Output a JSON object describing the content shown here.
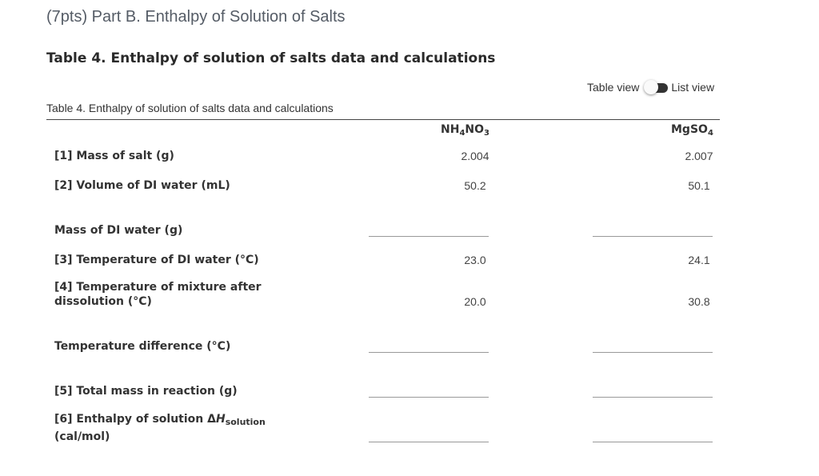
{
  "header": {
    "part_title": "(7pts) Part B. Enthalpy of Solution of Salts",
    "table_heading": "Table 4. Enthalpy of solution of salts data and calculations"
  },
  "view_toggle": {
    "left_label": "Table view",
    "right_label": "List view"
  },
  "table": {
    "caption": "Table 4. Enthalpy of solution of salts data and calculations",
    "columns": [
      {
        "formula_main": "NH",
        "sub1": "4",
        "formula_mid": "NO",
        "sub2": "3"
      },
      {
        "formula_main": "MgSO",
        "sub1": "4"
      }
    ],
    "rows": [
      {
        "label": "[1] Mass of salt (g)",
        "values": [
          "2.004",
          "2.007"
        ]
      },
      {
        "label": "[2] Volume of DI water (mL)",
        "values": [
          "50.2",
          "50.1"
        ]
      },
      {
        "label": "Mass of DI water (g)",
        "values": [
          "",
          ""
        ]
      },
      {
        "label": "[3] Temperature of DI water (°C)",
        "values": [
          "23.0",
          "24.1"
        ]
      },
      {
        "label_line1": "[4] Temperature of mixture after",
        "label_line2": "dissolution (°C)",
        "values": [
          "20.0",
          "30.8"
        ]
      },
      {
        "label": "Temperature difference (°C)",
        "values": [
          "",
          ""
        ]
      },
      {
        "label": "[5] Total mass in reaction (g)",
        "values": [
          "",
          ""
        ]
      },
      {
        "label_prefix": "[6] Enthalpy of solution Δ",
        "label_italic": "H",
        "label_sub": "solution",
        "label_line2": "(cal/mol)",
        "values": [
          "",
          ""
        ]
      }
    ]
  }
}
